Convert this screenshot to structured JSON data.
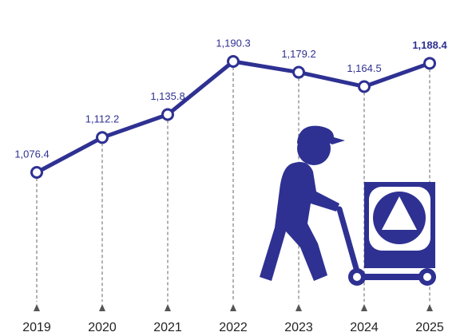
{
  "chart_data": {
    "type": "line",
    "categories": [
      "2019",
      "2020",
      "2021",
      "2022",
      "2023",
      "2024",
      "2025"
    ],
    "values": [
      1076.4,
      1112.2,
      1135.8,
      1190.3,
      1179.2,
      1164.5,
      1188.4
    ],
    "value_labels": [
      "1,076.4",
      "1,112.2",
      "1,135.8",
      "1,190.3",
      "1,179.2",
      "1,164.5",
      "1,188.4"
    ],
    "color": "#2e3192"
  }
}
